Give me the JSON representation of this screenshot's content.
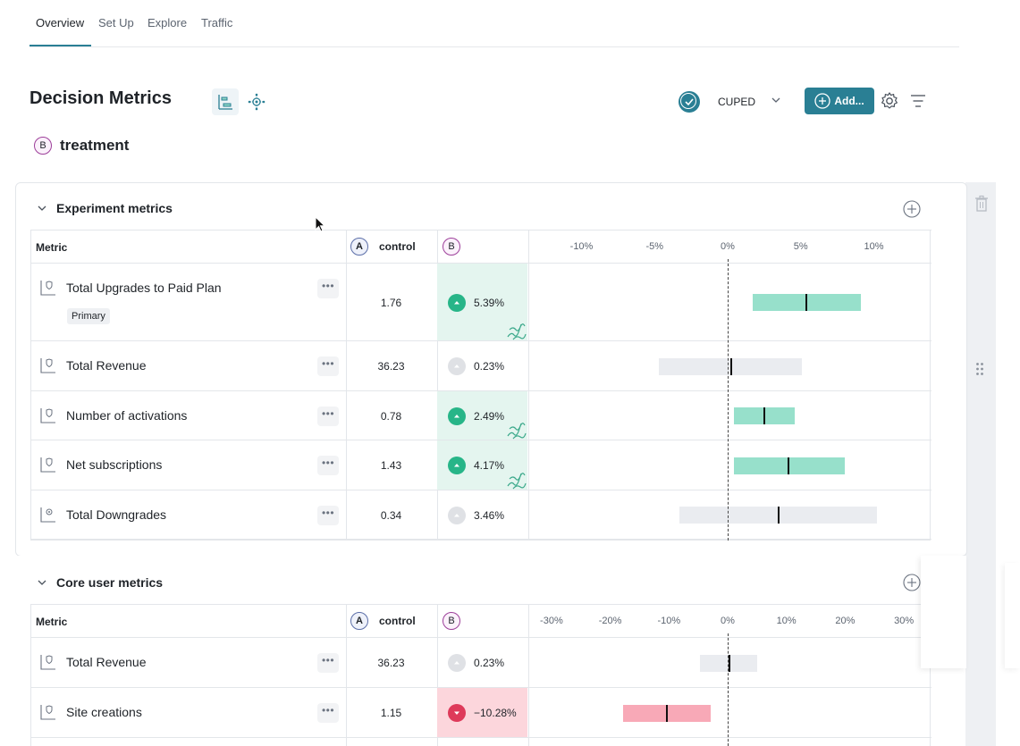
{
  "tabs": [
    {
      "label": "Overview",
      "active": true
    },
    {
      "label": "Set Up",
      "active": false
    },
    {
      "label": "Explore",
      "active": false
    },
    {
      "label": "Traffic",
      "active": false
    }
  ],
  "page_title": "Decision Metrics",
  "toolbar": {
    "cuped_label": "CUPED",
    "add_label": "Add..."
  },
  "variant": {
    "badge": "B",
    "name": "treatment"
  },
  "sections": [
    {
      "title": "Experiment metrics",
      "header": {
        "metric": "Metric",
        "control_badge": "A",
        "control": "control",
        "treatment_badge": "B"
      },
      "axis_ticks": [
        "-10%",
        "-5%",
        "0%",
        "5%",
        "10%"
      ],
      "rows": [
        {
          "name": "Total Upgrades to Paid Plan",
          "tag": "Primary",
          "control": "1.76",
          "treatment": "5.39%",
          "direction": "up",
          "ci": [
            1.7,
            9.1
          ],
          "point": 5.39
        },
        {
          "name": "Total Revenue",
          "control": "36.23",
          "treatment": "0.23%",
          "direction": "flat",
          "ci": [
            -4.7,
            5.1
          ],
          "point": 0.23
        },
        {
          "name": "Number of activations",
          "control": "0.78",
          "treatment": "2.49%",
          "direction": "up",
          "ci": [
            0.4,
            4.6
          ],
          "point": 2.49
        },
        {
          "name": "Net subscriptions",
          "control": "1.43",
          "treatment": "4.17%",
          "direction": "up",
          "ci": [
            0.4,
            8.0
          ],
          "point": 4.17
        },
        {
          "name": "Total Downgrades",
          "control": "0.34",
          "treatment": "3.46%",
          "direction": "flat",
          "ci": [
            -3.3,
            10.2
          ],
          "point": 3.46
        }
      ]
    },
    {
      "title": "Core user metrics",
      "header": {
        "metric": "Metric",
        "control_badge": "A",
        "control": "control",
        "treatment_badge": "B"
      },
      "axis_ticks": [
        "-30%",
        "-20%",
        "-10%",
        "0%",
        "10%",
        "20%",
        "30%"
      ],
      "rows": [
        {
          "name": "Total Revenue",
          "control": "36.23",
          "treatment": "0.23%",
          "direction": "flat",
          "ci": [
            -4.7,
            5.1
          ],
          "point": 0.23
        },
        {
          "name": "Site creations",
          "control": "1.15",
          "treatment": "−10.28%",
          "direction": "down",
          "ci": [
            -17.8,
            -2.9
          ],
          "point": -10.28
        }
      ]
    }
  ],
  "colors": {
    "accent": "#2a7f94",
    "positive": "#27b588",
    "negative": "#de3a5a",
    "treatment": "#9d3f9a",
    "control": "#5b6ea8"
  }
}
